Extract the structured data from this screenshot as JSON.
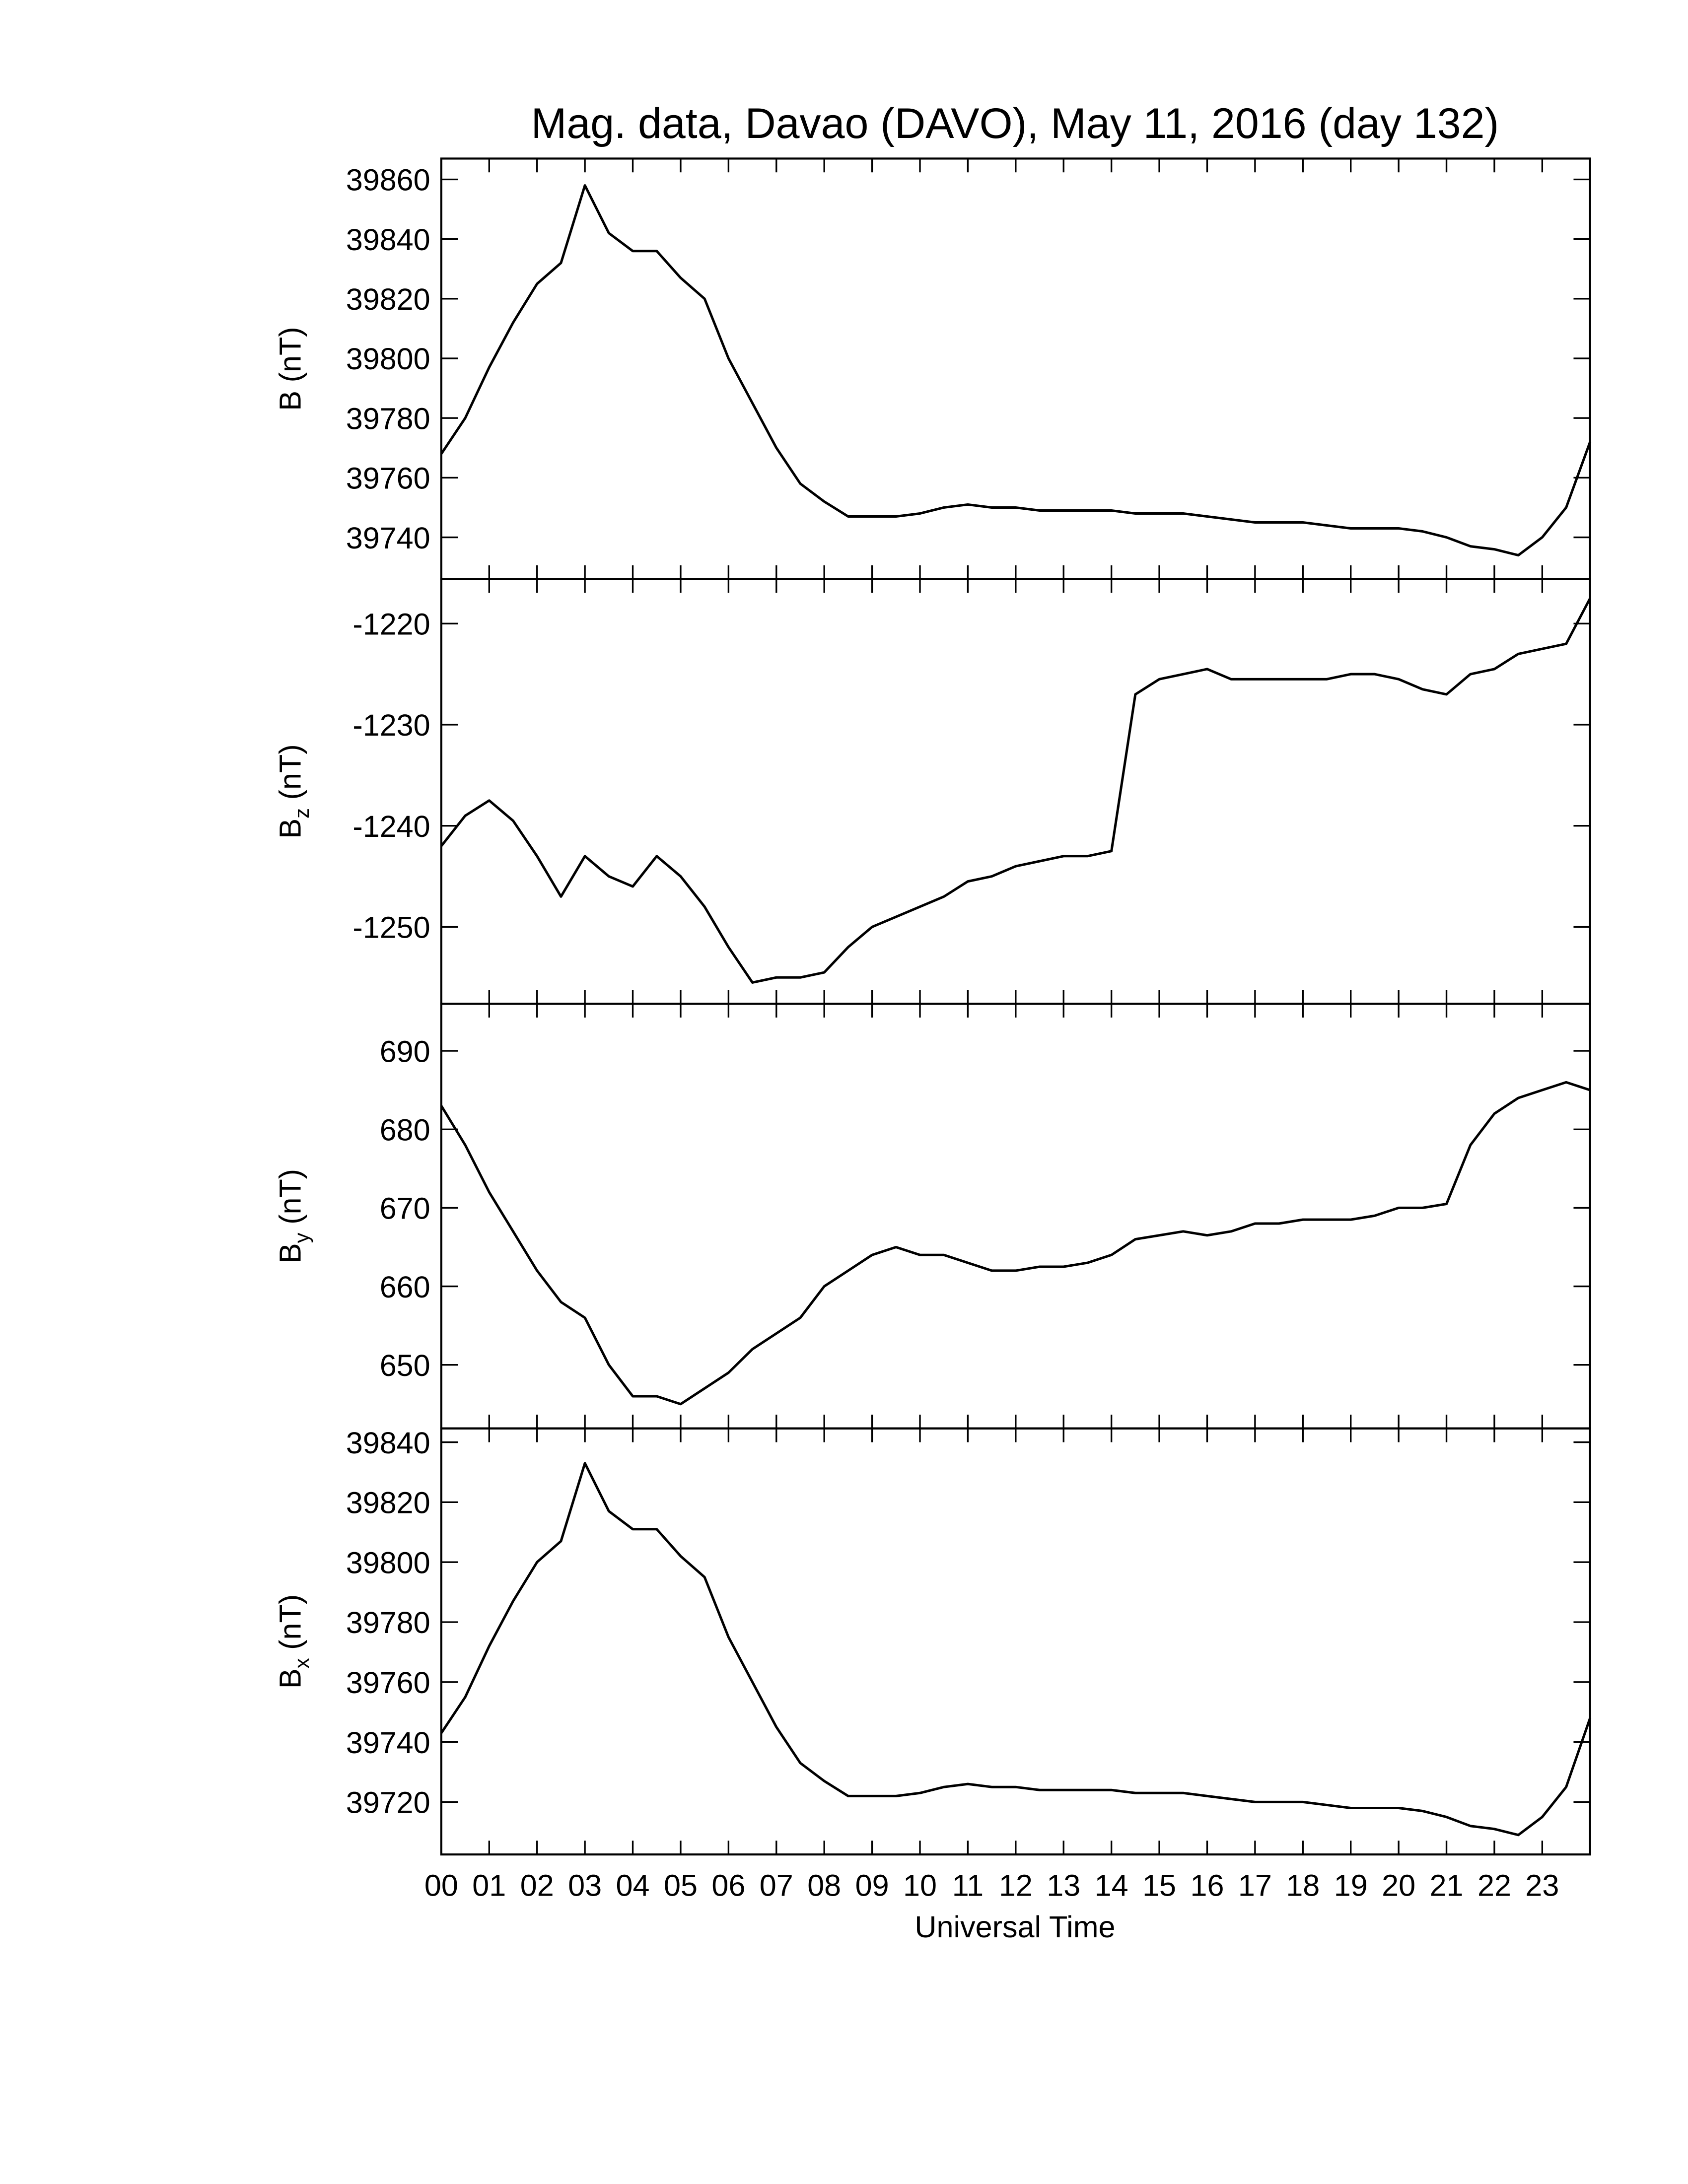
{
  "chart_data": {
    "type": "line",
    "title": "Mag. data, Davao (DAVO), May 11, 2016 (day 132)",
    "xlabel": "Universal Time",
    "xlim": [
      0,
      24
    ],
    "xticks": [
      {
        "value": 0,
        "label": "00"
      },
      {
        "value": 1,
        "label": "01"
      },
      {
        "value": 2,
        "label": "02"
      },
      {
        "value": 3,
        "label": "03"
      },
      {
        "value": 4,
        "label": "04"
      },
      {
        "value": 5,
        "label": "05"
      },
      {
        "value": 6,
        "label": "06"
      },
      {
        "value": 7,
        "label": "07"
      },
      {
        "value": 8,
        "label": "08"
      },
      {
        "value": 9,
        "label": "09"
      },
      {
        "value": 10,
        "label": "10"
      },
      {
        "value": 11,
        "label": "11"
      },
      {
        "value": 12,
        "label": "12"
      },
      {
        "value": 13,
        "label": "13"
      },
      {
        "value": 14,
        "label": "14"
      },
      {
        "value": 15,
        "label": "15"
      },
      {
        "value": 16,
        "label": "16"
      },
      {
        "value": 17,
        "label": "17"
      },
      {
        "value": 18,
        "label": "18"
      },
      {
        "value": 19,
        "label": "19"
      },
      {
        "value": 20,
        "label": "20"
      },
      {
        "value": 21,
        "label": "21"
      },
      {
        "value": 22,
        "label": "22"
      },
      {
        "value": 23,
        "label": "23"
      }
    ],
    "x": [
      0,
      0.5,
      1,
      1.5,
      2,
      2.5,
      3,
      3.5,
      4,
      4.5,
      5,
      5.5,
      6,
      6.5,
      7,
      7.5,
      8,
      8.5,
      9,
      9.5,
      10,
      10.5,
      11,
      11.5,
      12,
      12.5,
      13,
      13.5,
      14,
      14.5,
      15,
      15.5,
      16,
      16.5,
      17,
      17.5,
      18,
      18.5,
      19,
      19.5,
      20,
      20.5,
      21,
      21.5,
      22,
      22.5,
      23,
      23.5,
      24
    ],
    "panels": [
      {
        "ylabel": "B",
        "ylabel_unit": "(nT)",
        "ylim": [
          39726,
          39867
        ],
        "yticks": [
          39740,
          39760,
          39780,
          39800,
          39820,
          39840,
          39860
        ],
        "series": [
          {
            "color": "#000000",
            "values": [
              39768,
              39780,
              39797,
              39812,
              39825,
              39832,
              39858,
              39842,
              39836,
              39836,
              39827,
              39820,
              39800,
              39785,
              39770,
              39758,
              39752,
              39747,
              39747,
              39747,
              39748,
              39750,
              39751,
              39750,
              39750,
              39749,
              39749,
              39749,
              39749,
              39748,
              39748,
              39748,
              39747,
              39746,
              39745,
              39745,
              39745,
              39744,
              39743,
              39743,
              39743,
              39742,
              39740,
              39737,
              39736,
              39734,
              39740,
              39750,
              39772
            ]
          }
        ]
      },
      {
        "ylabel": "B",
        "ylabel_sub": "z",
        "ylabel_unit": "(nT)",
        "ylim": [
          -1257.6,
          -1215.6
        ],
        "yticks": [
          -1250,
          -1240,
          -1230,
          -1220
        ],
        "series": [
          {
            "color": "#000000",
            "values": [
              -1242,
              -1239,
              -1237.5,
              -1239.5,
              -1243,
              -1247,
              -1243,
              -1245,
              -1246,
              -1243,
              -1245,
              -1248,
              -1252,
              -1255.5,
              -1255,
              -1255,
              -1254.5,
              -1252,
              -1250,
              -1249,
              -1248,
              -1247,
              -1245.5,
              -1245,
              -1244,
              -1243.5,
              -1243,
              -1243,
              -1242.5,
              -1227,
              -1225.5,
              -1225,
              -1224.5,
              -1225.5,
              -1225.5,
              -1225.5,
              -1225.5,
              -1225.5,
              -1225,
              -1225,
              -1225.5,
              -1226.5,
              -1227,
              -1225,
              -1224.5,
              -1223,
              -1222.5,
              -1222,
              -1217.5
            ]
          }
        ]
      },
      {
        "ylabel": "B",
        "ylabel_sub": "y",
        "ylabel_unit": "(nT)",
        "ylim": [
          641.9,
          696
        ],
        "yticks": [
          650,
          660,
          670,
          680,
          690
        ],
        "series": [
          {
            "color": "#000000",
            "values": [
              683,
              678,
              672,
              667,
              662,
              658,
              656,
              650,
              646,
              646,
              645,
              647,
              649,
              652,
              654,
              656,
              660,
              662,
              664,
              665,
              664,
              664,
              663,
              662,
              662,
              662.5,
              662.5,
              663,
              664,
              666,
              666.5,
              667,
              666.5,
              667,
              668,
              668,
              668.5,
              668.5,
              668.5,
              669,
              670,
              670,
              670.5,
              678,
              682,
              684,
              685,
              686,
              685
            ]
          }
        ]
      },
      {
        "ylabel": "B",
        "ylabel_sub": "x",
        "ylabel_unit": "(nT)",
        "ylim": [
          39702.5,
          39844.6
        ],
        "yticks": [
          39720,
          39740,
          39760,
          39780,
          39800,
          39820,
          39840
        ],
        "series": [
          {
            "color": "#000000",
            "values": [
              39743,
              39755,
              39772,
              39787,
              39800,
              39807,
              39833,
              39817,
              39811,
              39811,
              39802,
              39795,
              39775,
              39760,
              39745,
              39733,
              39727,
              39722,
              39722,
              39722,
              39723,
              39725,
              39726,
              39725,
              39725,
              39724,
              39724,
              39724,
              39724,
              39723,
              39723,
              39723,
              39722,
              39721,
              39720,
              39720,
              39720,
              39719,
              39718,
              39718,
              39718,
              39717,
              39715,
              39712,
              39711,
              39709,
              39715,
              39725,
              39748
            ]
          }
        ]
      }
    ]
  }
}
